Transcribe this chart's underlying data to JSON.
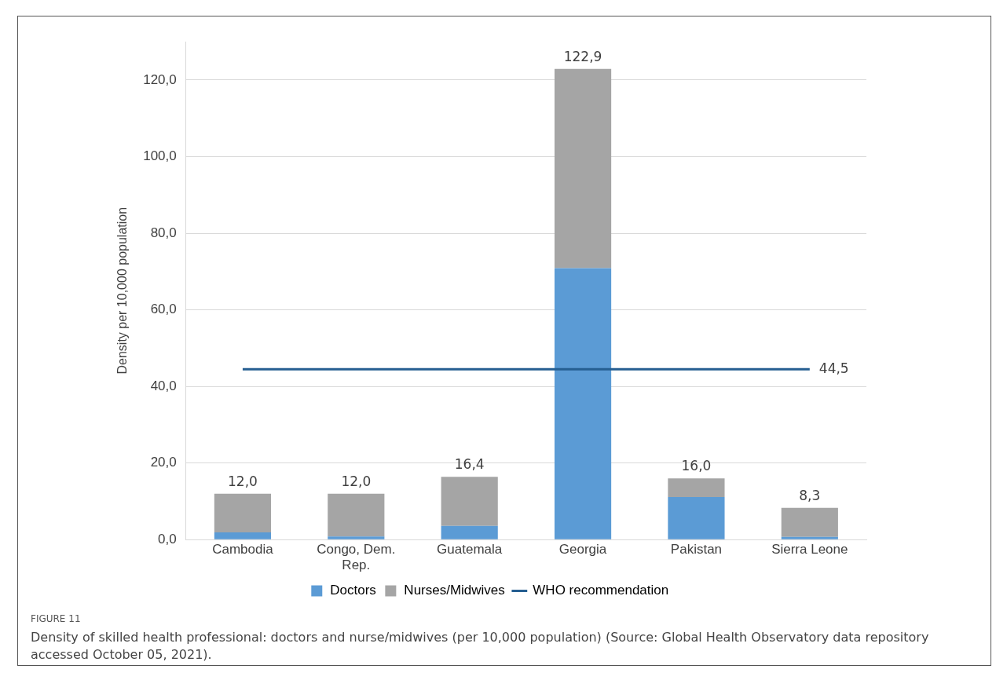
{
  "chart_data": {
    "type": "bar",
    "stacked": true,
    "ylabel": "Density per 10,000 population",
    "categories": [
      "Cambodia",
      "Congo, Dem. Rep.",
      "Guatemala",
      "Georgia",
      "Pakistan",
      "Sierra Leone"
    ],
    "series": [
      {
        "name": "Doctors",
        "color": "#5b9bd5",
        "values": [
          1.9,
          0.8,
          3.6,
          70.9,
          11.1,
          0.7
        ]
      },
      {
        "name": "Nurses/Midwives",
        "color": "#a5a5a5",
        "values": [
          10.1,
          11.2,
          12.8,
          52.0,
          4.9,
          7.6
        ]
      },
      {
        "name": "WHO recommendation",
        "type": "line",
        "color": "#255e91",
        "values": [
          44.5,
          44.5,
          44.5,
          44.5,
          44.5,
          44.5
        ],
        "value_labels": [
          null,
          null,
          null,
          null,
          null,
          "44,5"
        ]
      }
    ],
    "totals": [
      "12,0",
      "12,0",
      "16,4",
      "122,9",
      "16,0",
      "8,3"
    ],
    "ylim": [
      0,
      130
    ],
    "yticks": [
      {
        "value": 0,
        "label": "0,0"
      },
      {
        "value": 20,
        "label": "20,0"
      },
      {
        "value": 40,
        "label": "40,0"
      },
      {
        "value": 60,
        "label": "60,0"
      },
      {
        "value": 80,
        "label": "80,0"
      },
      {
        "value": 100,
        "label": "100,0"
      },
      {
        "value": 120,
        "label": "120,0"
      }
    ],
    "grid": "y",
    "legend": "bottom",
    "marker": "none",
    "annotations": [
      "FIGURE 11",
      "Density of skilled health professional: doctors and nurse/midwives (per 10,000 population) (Source: Global Health Observatory data repository accessed October 05, 2021)."
    ]
  }
}
